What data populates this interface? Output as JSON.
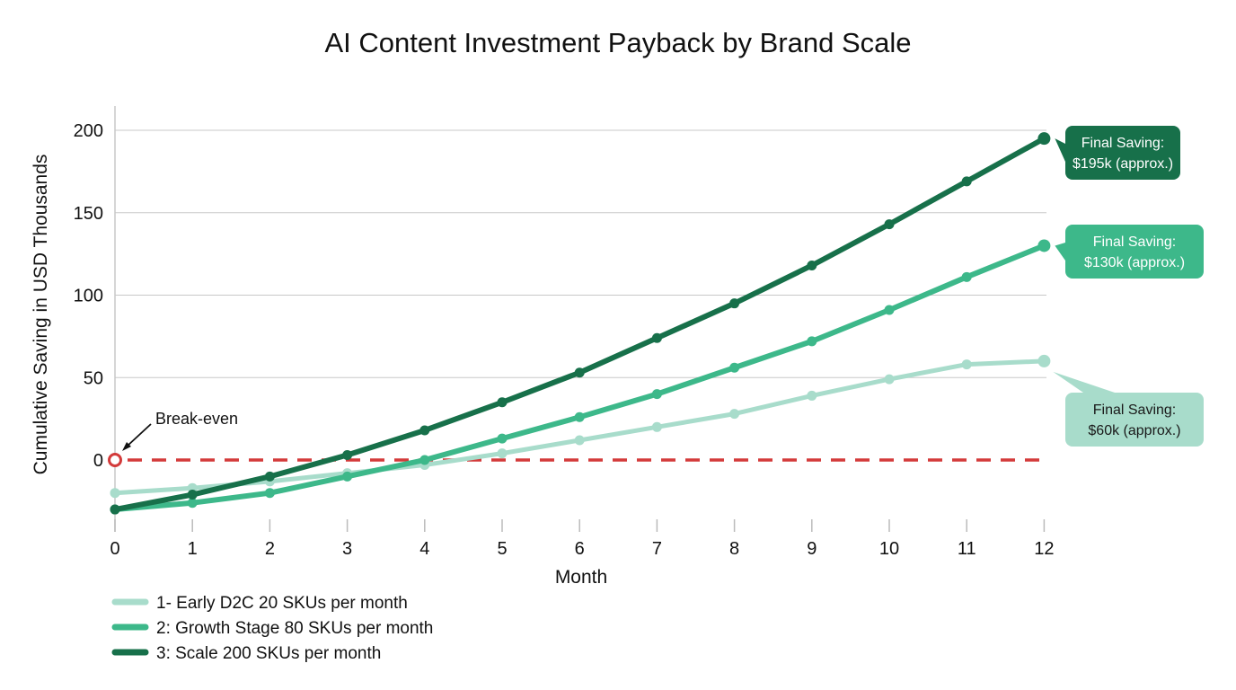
{
  "chart_data": {
    "type": "line",
    "title": "AI Content Investment Payback by Brand Scale",
    "xlabel": "Month",
    "ylabel": "Cumulative Saving in USD Thousands",
    "x": [
      0,
      1,
      2,
      3,
      4,
      5,
      6,
      7,
      8,
      9,
      10,
      11,
      12
    ],
    "xlim": [
      0,
      12
    ],
    "ylim": [
      -35,
      200
    ],
    "xticks": [
      "0",
      "1",
      "2",
      "3",
      "4",
      "5",
      "6",
      "7",
      "8",
      "9",
      "10",
      "11",
      "12"
    ],
    "yticks": [
      0,
      50,
      100,
      150,
      200
    ],
    "grid": "horizontal",
    "legend_position": "bottom-left",
    "series": [
      {
        "name": "1- Early D2C 20 SKUs per month",
        "color": "#a8dccb",
        "values": [
          -20,
          -17,
          -13,
          -8,
          -3,
          4,
          12,
          20,
          28,
          39,
          49,
          58,
          60
        ]
      },
      {
        "name": "2: Growth Stage 80 SKUs per month",
        "color": "#3db88a",
        "values": [
          -30,
          -26,
          -20,
          -10,
          0,
          13,
          26,
          40,
          56,
          72,
          91,
          111,
          130
        ]
      },
      {
        "name": "3: Scale 200 SKUs per month",
        "color": "#17704a",
        "values": [
          -30,
          -21,
          -10,
          3,
          18,
          35,
          53,
          74,
          95,
          118,
          143,
          169,
          195
        ]
      }
    ],
    "reference_line": {
      "value": 0,
      "color": "#d33a3a",
      "style": "dashed"
    },
    "annotations": {
      "break_even": "Break-even",
      "callouts": [
        {
          "series": 2,
          "line1": "Final Saving:",
          "line2": "$195k (approx.)",
          "color": "#17704a",
          "text_color": "#ffffff"
        },
        {
          "series": 1,
          "line1": "Final Saving:",
          "line2": "$130k (approx.)",
          "color": "#3db88a",
          "text_color": "#ffffff"
        },
        {
          "series": 0,
          "line1": "Final Saving:",
          "line2": "$60k (approx.)",
          "color": "#a8dccb",
          "text_color": "#1a1a1a"
        }
      ]
    }
  }
}
